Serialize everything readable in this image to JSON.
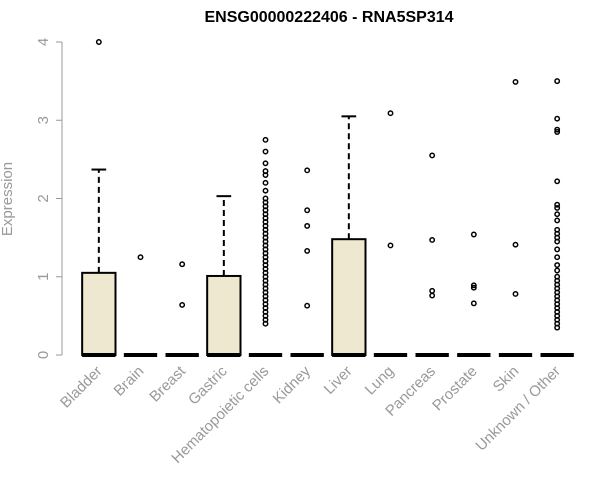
{
  "chart_data": {
    "type": "box",
    "title": "ENSG00000222406 - RNA5SP314",
    "xlabel": "",
    "ylabel": "Expression",
    "ylim": [
      0,
      4
    ],
    "yticks": [
      0,
      1,
      2,
      3,
      4
    ],
    "box_fill": "#ede8cf",
    "categories": [
      "Bladder",
      "Brain",
      "Breast",
      "Gastric",
      "Hematopoietic cells",
      "Kidney",
      "Liver",
      "Lung",
      "Pancreas",
      "Prostate",
      "Skin",
      "Unknown / Other"
    ],
    "boxes": [
      {
        "q1": 0,
        "median": 0,
        "q3": 1.05,
        "whisker_low": 0,
        "whisker_high": 2.37,
        "outliers": [
          4.0
        ]
      },
      {
        "q1": 0,
        "median": 0,
        "q3": 0,
        "whisker_low": 0,
        "whisker_high": 0,
        "outliers": [
          1.25
        ]
      },
      {
        "q1": 0,
        "median": 0,
        "q3": 0,
        "whisker_low": 0,
        "whisker_high": 0,
        "outliers": [
          1.16,
          0.64
        ]
      },
      {
        "q1": 0,
        "median": 0,
        "q3": 1.01,
        "whisker_low": 0,
        "whisker_high": 2.03,
        "outliers": []
      },
      {
        "q1": 0,
        "median": 0,
        "q3": 0,
        "whisker_low": 0,
        "whisker_high": 0,
        "outliers": [
          2.75,
          2.6,
          2.45,
          2.35,
          2.3,
          2.2,
          2.1,
          2.0,
          1.95,
          1.9,
          1.85,
          1.8,
          1.75,
          1.7,
          1.65,
          1.6,
          1.55,
          1.5,
          1.45,
          1.4,
          1.35,
          1.3,
          1.25,
          1.2,
          1.15,
          1.1,
          1.05,
          1.0,
          0.95,
          0.9,
          0.85,
          0.8,
          0.75,
          0.7,
          0.65,
          0.6,
          0.55,
          0.5,
          0.45,
          0.4
        ]
      },
      {
        "q1": 0,
        "median": 0,
        "q3": 0,
        "whisker_low": 0,
        "whisker_high": 0,
        "outliers": [
          2.36,
          1.85,
          1.65,
          1.33,
          0.63
        ]
      },
      {
        "q1": 0,
        "median": 0,
        "q3": 1.48,
        "whisker_low": 0,
        "whisker_high": 3.05,
        "outliers": []
      },
      {
        "q1": 0,
        "median": 0,
        "q3": 0,
        "whisker_low": 0,
        "whisker_high": 0,
        "outliers": [
          3.09,
          1.4
        ]
      },
      {
        "q1": 0,
        "median": 0,
        "q3": 0,
        "whisker_low": 0,
        "whisker_high": 0,
        "outliers": [
          2.55,
          1.47,
          0.82,
          0.76
        ]
      },
      {
        "q1": 0,
        "median": 0,
        "q3": 0,
        "whisker_low": 0,
        "whisker_high": 0,
        "outliers": [
          1.54,
          0.89,
          0.86,
          0.66
        ]
      },
      {
        "q1": 0,
        "median": 0,
        "q3": 0,
        "whisker_low": 0,
        "whisker_high": 0,
        "outliers": [
          3.49,
          1.41,
          0.78
        ]
      },
      {
        "q1": 0,
        "median": 0,
        "q3": 0,
        "whisker_low": 0,
        "whisker_high": 0,
        "outliers": [
          3.5,
          3.02,
          2.88,
          2.85,
          2.22,
          1.92,
          1.88,
          1.8,
          1.72,
          1.6,
          1.55,
          1.5,
          1.45,
          1.35,
          1.25,
          1.15,
          1.08,
          1.0,
          0.95,
          0.9,
          0.85,
          0.8,
          0.75,
          0.7,
          0.65,
          0.6,
          0.55,
          0.5,
          0.45,
          0.4,
          0.35
        ]
      }
    ]
  }
}
